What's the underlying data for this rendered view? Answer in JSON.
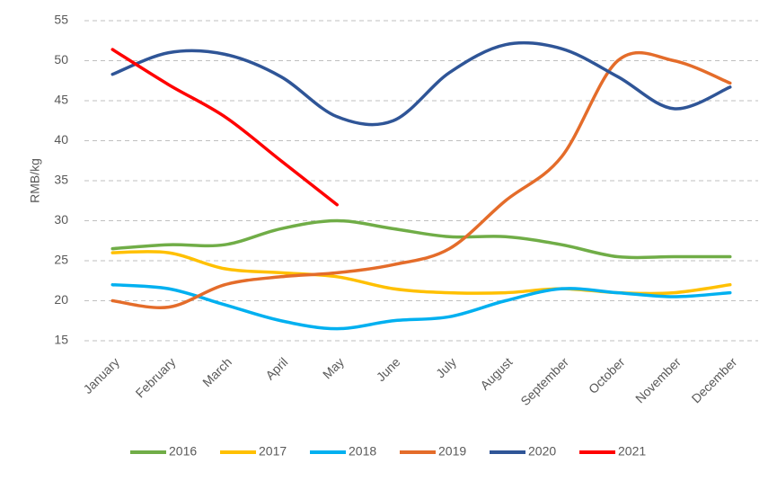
{
  "chart_data": {
    "type": "line",
    "y_label": "RMB/kg",
    "categories": [
      "January",
      "February",
      "March",
      "April",
      "May",
      "June",
      "July",
      "August",
      "September",
      "October",
      "November",
      "December"
    ],
    "series": [
      {
        "name": "2016",
        "color": "#70ad47",
        "values": [
          26.5,
          27,
          27,
          29,
          30,
          29,
          28,
          28,
          27,
          25.5,
          25.5,
          25.5
        ]
      },
      {
        "name": "2017",
        "color": "#ffc000",
        "values": [
          26,
          26,
          24,
          23.5,
          23,
          21.5,
          21,
          21,
          21.5,
          21,
          21,
          22
        ]
      },
      {
        "name": "2018",
        "color": "#00b0f0",
        "values": [
          22,
          21.5,
          19.5,
          17.5,
          16.5,
          17.5,
          18,
          20,
          21.5,
          21,
          20.5,
          21
        ]
      },
      {
        "name": "2019",
        "color": "#e46c2a",
        "values": [
          20,
          19.2,
          22,
          23,
          23.5,
          24.5,
          26.5,
          32.5,
          38,
          50,
          50,
          47.2
        ]
      },
      {
        "name": "2020",
        "color": "#2f5597",
        "values": [
          48.3,
          51,
          50.8,
          48,
          43,
          42.5,
          48.5,
          52,
          51.5,
          48,
          44,
          46.7
        ]
      },
      {
        "name": "2021",
        "color": "#ff0000",
        "values": [
          51.4,
          47,
          43,
          37.5,
          32,
          null,
          null,
          null,
          null,
          null,
          null,
          null
        ]
      }
    ],
    "ylim": [
      15,
      55
    ],
    "yticks": [
      15,
      20,
      25,
      30,
      35,
      40,
      45,
      50,
      55
    ],
    "grid": true,
    "legend": "bottom",
    "smooth": true
  }
}
